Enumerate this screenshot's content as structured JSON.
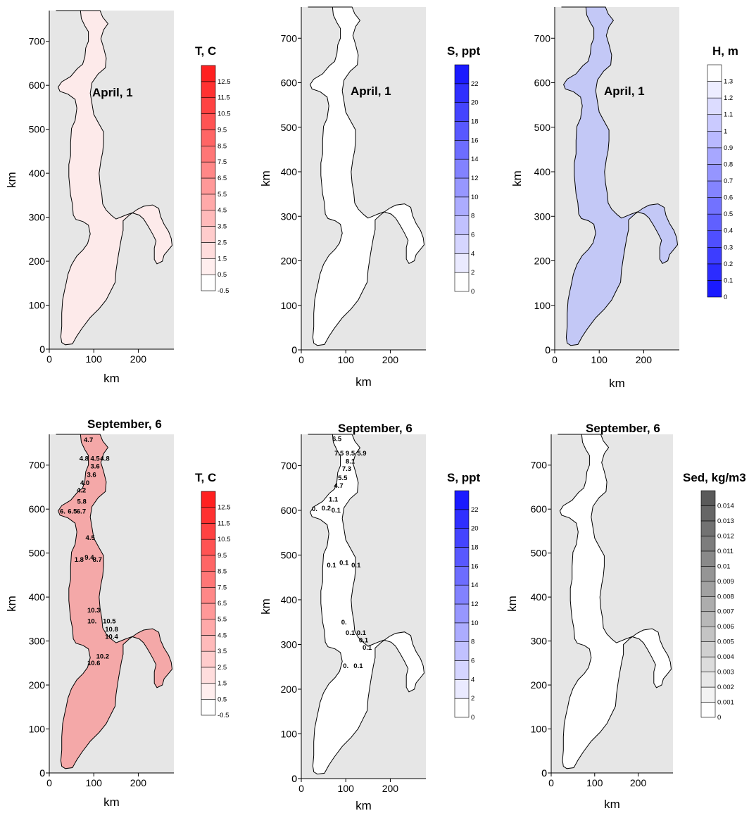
{
  "figure": {
    "background": "#e6e6e6",
    "outline_color": "#000000"
  },
  "chart_data": [
    {
      "id": "temperature-april",
      "type": "heatmap",
      "title": "April, 1",
      "xlabel": "km",
      "ylabel": "km",
      "xlim": [
        0,
        280
      ],
      "ylim": [
        0,
        770
      ],
      "xticks": [
        0,
        100,
        200
      ],
      "yticks": [
        0,
        100,
        200,
        300,
        400,
        500,
        600,
        700
      ],
      "fill": "#fdeaea",
      "legend": {
        "title": "T, C",
        "levels": [
          "-0.5",
          "0.5",
          "1.5",
          "2.5",
          "3.5",
          "4.5",
          "5.5",
          "6.5",
          "7.5",
          "8.5",
          "9.5",
          "10.5",
          "11.5",
          "12.5"
        ],
        "color_low": "#ffffff",
        "color_high": "#ff2020"
      },
      "contour_labels": []
    },
    {
      "id": "salinity-april",
      "type": "heatmap",
      "title": "April, 1",
      "xlabel": "km",
      "ylabel": "km",
      "xlim": [
        0,
        280
      ],
      "ylim": [
        0,
        770
      ],
      "xticks": [
        0,
        100,
        200
      ],
      "yticks": [
        0,
        100,
        200,
        300,
        400,
        500,
        600,
        700
      ],
      "fill": "#ffffff",
      "legend": {
        "title": "S, ppt",
        "levels": [
          "0",
          "2",
          "4",
          "6",
          "8",
          "10",
          "12",
          "14",
          "16",
          "18",
          "20",
          "22"
        ],
        "color_low": "#ffffff",
        "color_high": "#1a1aff"
      },
      "contour_labels": []
    },
    {
      "id": "depth-april",
      "type": "heatmap",
      "title": "April, 1",
      "xlabel": "km",
      "ylabel": "km",
      "xlim": [
        0,
        280
      ],
      "ylim": [
        0,
        770
      ],
      "xticks": [
        0,
        100,
        200
      ],
      "yticks": [
        0,
        100,
        200,
        300,
        400,
        500,
        600,
        700
      ],
      "fill": "#c3c8f6",
      "legend": {
        "title": "H, m",
        "levels": [
          "0",
          "0.1",
          "0.2",
          "0.3",
          "0.4",
          "0.5",
          "0.6",
          "0.7",
          "0.8",
          "0.9",
          "1",
          "1.1",
          "1.2",
          "1.3"
        ],
        "color_low": "#1a1aff",
        "color_high": "#ffffff"
      },
      "contour_labels": []
    },
    {
      "id": "temperature-september",
      "type": "heatmap",
      "title": "September, 6",
      "xlabel": "km",
      "ylabel": "km",
      "xlim": [
        0,
        280
      ],
      "ylim": [
        0,
        770
      ],
      "xticks": [
        0,
        100,
        200
      ],
      "yticks": [
        0,
        100,
        200,
        300,
        400,
        500,
        600,
        700
      ],
      "fill": "#f4a8a8",
      "legend": {
        "title": "T, C",
        "levels": [
          "-0.5",
          "0.5",
          "1.5",
          "2.5",
          "3.5",
          "4.5",
          "5.5",
          "6.5",
          "7.5",
          "8.5",
          "9.5",
          "10.5",
          "11.5",
          "12.5"
        ],
        "color_low": "#ffffff",
        "color_high": "#ff2020"
      },
      "contour_labels": [
        {
          "text": "4.7",
          "x": 88,
          "y": 752
        },
        {
          "text": "4.8",
          "x": 78,
          "y": 710
        },
        {
          "text": "4.5",
          "x": 103,
          "y": 710
        },
        {
          "text": "4.8",
          "x": 125,
          "y": 710
        },
        {
          "text": "3.6",
          "x": 103,
          "y": 692
        },
        {
          "text": "3.6",
          "x": 95,
          "y": 673
        },
        {
          "text": "4.0",
          "x": 80,
          "y": 655
        },
        {
          "text": "4.2",
          "x": 72,
          "y": 638
        },
        {
          "text": "5.8",
          "x": 73,
          "y": 612
        },
        {
          "text": "6.",
          "x": 30,
          "y": 590
        },
        {
          "text": "6.5",
          "x": 52,
          "y": 590
        },
        {
          "text": "6.7",
          "x": 72,
          "y": 590
        },
        {
          "text": "4.5",
          "x": 92,
          "y": 530
        },
        {
          "text": "1.8",
          "x": 67,
          "y": 480
        },
        {
          "text": "9.4",
          "x": 90,
          "y": 485
        },
        {
          "text": "8.7",
          "x": 108,
          "y": 480
        },
        {
          "text": "10.3",
          "x": 100,
          "y": 365
        },
        {
          "text": "10.",
          "x": 96,
          "y": 340
        },
        {
          "text": "10.5",
          "x": 135,
          "y": 340
        },
        {
          "text": "10.8",
          "x": 140,
          "y": 322
        },
        {
          "text": "10.4",
          "x": 140,
          "y": 305
        },
        {
          "text": "10.2",
          "x": 120,
          "y": 260
        },
        {
          "text": "10.6",
          "x": 100,
          "y": 245
        }
      ]
    },
    {
      "id": "salinity-september",
      "type": "heatmap",
      "title": "September, 6",
      "xlabel": "km",
      "ylabel": "km",
      "xlim": [
        0,
        280
      ],
      "ylim": [
        0,
        770
      ],
      "xticks": [
        0,
        100,
        200
      ],
      "yticks": [
        0,
        100,
        200,
        300,
        400,
        500,
        600,
        700
      ],
      "fill": "#ffffff",
      "legend": {
        "title": "S, ppt",
        "levels": [
          "0",
          "2",
          "4",
          "6",
          "8",
          "10",
          "12",
          "14",
          "16",
          "18",
          "20",
          "22"
        ],
        "color_low": "#ffffff",
        "color_high": "#1a1aff"
      },
      "contour_labels": [
        {
          "text": "6.5",
          "x": 80,
          "y": 755
        },
        {
          "text": "7.5",
          "x": 85,
          "y": 723
        },
        {
          "text": "9.5",
          "x": 110,
          "y": 723
        },
        {
          "text": "5.9",
          "x": 136,
          "y": 723
        },
        {
          "text": "8.1",
          "x": 110,
          "y": 705
        },
        {
          "text": "7.3",
          "x": 102,
          "y": 688
        },
        {
          "text": "5.5",
          "x": 93,
          "y": 668
        },
        {
          "text": "4.7",
          "x": 84,
          "y": 650
        },
        {
          "text": "1.1",
          "x": 72,
          "y": 620
        },
        {
          "text": "0.",
          "x": 30,
          "y": 598
        },
        {
          "text": "0.2",
          "x": 56,
          "y": 600
        },
        {
          "text": "0.1",
          "x": 78,
          "y": 595
        },
        {
          "text": "0.1",
          "x": 68,
          "y": 472
        },
        {
          "text": "0.1",
          "x": 96,
          "y": 478
        },
        {
          "text": "0.1",
          "x": 123,
          "y": 472
        },
        {
          "text": "0.",
          "x": 96,
          "y": 345
        },
        {
          "text": "0.1",
          "x": 110,
          "y": 321
        },
        {
          "text": "0.1",
          "x": 135,
          "y": 321
        },
        {
          "text": "0.1",
          "x": 140,
          "y": 305
        },
        {
          "text": "0.1",
          "x": 148,
          "y": 288
        },
        {
          "text": "0.",
          "x": 100,
          "y": 247
        },
        {
          "text": "0.1",
          "x": 128,
          "y": 247
        }
      ]
    },
    {
      "id": "sediment-september",
      "type": "heatmap",
      "title": "September, 6",
      "xlabel": "km",
      "ylabel": "km",
      "xlim": [
        0,
        280
      ],
      "ylim": [
        0,
        770
      ],
      "xticks": [
        0,
        100,
        200
      ],
      "yticks": [
        0,
        100,
        200,
        300,
        400,
        500,
        600,
        700
      ],
      "fill": "#ffffff",
      "legend": {
        "title": "Sed, kg/m3",
        "levels": [
          "0",
          "0.001",
          "0.002",
          "0.003",
          "0.004",
          "0.005",
          "0.006",
          "0.007",
          "0.008",
          "0.009",
          "0.01",
          "0.011",
          "0.012",
          "0.013",
          "0.014"
        ],
        "color_low": "#ffffff",
        "color_high": "#5a5a5a"
      },
      "contour_labels": []
    }
  ]
}
